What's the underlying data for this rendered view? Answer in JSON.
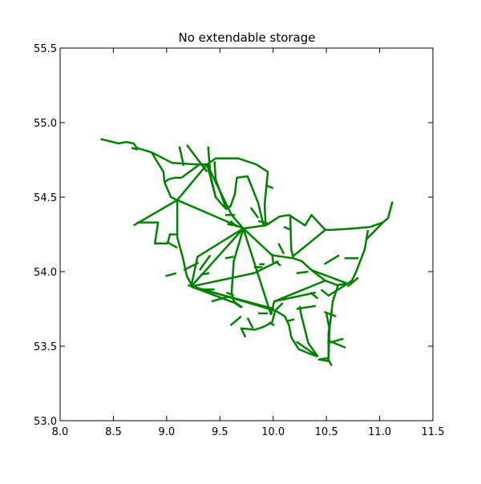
{
  "chart_data": {
    "type": "line",
    "title": "No extendable storage",
    "xlabel": "",
    "ylabel": "",
    "xlim": [
      8.0,
      11.5
    ],
    "ylim": [
      53.0,
      55.5
    ],
    "xticks": [
      "8.0",
      "8.5",
      "9.0",
      "9.5",
      "10.0",
      "10.5",
      "11.0",
      "11.5"
    ],
    "yticks": [
      "53.0",
      "53.5",
      "54.0",
      "54.5",
      "55.0",
      "55.5"
    ],
    "grid": false,
    "legend": "none",
    "line_color": "#008000",
    "series": [
      {
        "points": [
          [
            8.38,
            54.89
          ],
          [
            8.55,
            54.86
          ],
          [
            8.62,
            54.87
          ],
          [
            8.69,
            54.86
          ],
          [
            8.72,
            54.83
          ],
          [
            8.86,
            54.8
          ],
          [
            9.05,
            54.73
          ],
          [
            9.27,
            54.72
          ],
          [
            9.38,
            54.72
          ],
          [
            9.46,
            54.76
          ],
          [
            9.67,
            54.76
          ],
          [
            9.84,
            54.72
          ],
          [
            9.95,
            54.67
          ],
          [
            9.92,
            54.45
          ],
          [
            9.93,
            54.31
          ]
        ]
      },
      {
        "points": [
          [
            8.67,
            54.83
          ],
          [
            8.73,
            54.82
          ]
        ]
      },
      {
        "points": [
          [
            8.86,
            54.8
          ],
          [
            8.9,
            54.75
          ],
          [
            8.97,
            54.67
          ],
          [
            8.98,
            54.6
          ],
          [
            9.04,
            54.5
          ],
          [
            9.1,
            54.48
          ]
        ]
      },
      {
        "points": [
          [
            8.98,
            54.6
          ],
          [
            9.02,
            54.62
          ],
          [
            9.08,
            54.63
          ],
          [
            9.14,
            54.63
          ]
        ]
      },
      {
        "points": [
          [
            9.1,
            54.48
          ],
          [
            9.38,
            54.72
          ]
        ]
      },
      {
        "points": [
          [
            9.12,
            54.84
          ],
          [
            9.16,
            54.71
          ]
        ]
      },
      {
        "points": [
          [
            9.14,
            54.63
          ],
          [
            9.31,
            54.72
          ]
        ]
      },
      {
        "points": [
          [
            9.19,
            54.85
          ],
          [
            9.38,
            54.67
          ]
        ]
      },
      {
        "points": [
          [
            9.38,
            54.72
          ],
          [
            9.46,
            54.5
          ],
          [
            9.52,
            54.45
          ],
          [
            9.56,
            54.42
          ],
          [
            9.6,
            54.44
          ],
          [
            9.64,
            54.52
          ],
          [
            9.66,
            54.63
          ],
          [
            9.76,
            54.64
          ],
          [
            9.86,
            54.46
          ],
          [
            9.91,
            54.31
          ]
        ]
      },
      {
        "points": [
          [
            9.39,
            54.84
          ],
          [
            9.41,
            54.65
          ],
          [
            9.46,
            54.5
          ]
        ]
      },
      {
        "points": [
          [
            9.45,
            54.74
          ],
          [
            9.46,
            54.62
          ],
          [
            9.56,
            54.42
          ]
        ]
      },
      {
        "points": [
          [
            9.38,
            54.72
          ],
          [
            9.61,
            54.38
          ],
          [
            9.72,
            54.29
          ]
        ]
      },
      {
        "points": [
          [
            9.1,
            54.48
          ],
          [
            9.72,
            54.29
          ]
        ]
      },
      {
        "points": [
          [
            8.69,
            54.31
          ],
          [
            9.1,
            54.48
          ]
        ]
      },
      {
        "points": [
          [
            8.72,
            54.33
          ],
          [
            8.92,
            54.33
          ],
          [
            8.89,
            54.19
          ],
          [
            9.01,
            54.19
          ],
          [
            9.03,
            54.25
          ],
          [
            9.09,
            54.25
          ]
        ]
      },
      {
        "points": [
          [
            9.1,
            54.48
          ],
          [
            9.1,
            54.23
          ],
          [
            9.15,
            54.1
          ],
          [
            9.19,
            53.97
          ],
          [
            9.25,
            53.89
          ]
        ]
      },
      {
        "points": [
          [
            9.72,
            54.29
          ],
          [
            9.23,
            53.9
          ]
        ]
      },
      {
        "points": [
          [
            9.72,
            54.29
          ],
          [
            9.63,
            54.07
          ],
          [
            9.61,
            53.86
          ],
          [
            9.63,
            53.8
          ],
          [
            9.71,
            53.76
          ]
        ]
      },
      {
        "points": [
          [
            9.72,
            54.29
          ],
          [
            9.98,
            53.71
          ]
        ]
      },
      {
        "points": [
          [
            9.72,
            54.29
          ],
          [
            9.93,
            54.31
          ],
          [
            10.06,
            54.37
          ],
          [
            10.15,
            54.38
          ],
          [
            10.3,
            54.31
          ],
          [
            10.36,
            54.38
          ],
          [
            10.49,
            54.28
          ],
          [
            10.55,
            54.28
          ],
          [
            10.75,
            54.29
          ],
          [
            10.91,
            54.3
          ],
          [
            11.03,
            54.33
          ],
          [
            11.08,
            54.36
          ],
          [
            11.12,
            54.47
          ]
        ]
      },
      {
        "points": [
          [
            9.72,
            54.29
          ],
          [
            9.99,
            54.11
          ],
          [
            10.19,
            54.09
          ],
          [
            10.27,
            54.07
          ],
          [
            10.36,
            54.01
          ],
          [
            10.49,
            53.94
          ],
          [
            10.6,
            53.91
          ],
          [
            10.7,
            53.92
          ]
        ]
      },
      {
        "points": [
          [
            9.72,
            54.29
          ],
          [
            9.29,
            54.1
          ],
          [
            9.23,
            53.9
          ]
        ]
      },
      {
        "points": [
          [
            10.49,
            54.28
          ],
          [
            10.25,
            54.14
          ],
          [
            10.18,
            54.1
          ]
        ]
      },
      {
        "points": [
          [
            10.16,
            54.38
          ],
          [
            10.17,
            54.15
          ],
          [
            10.19,
            54.09
          ]
        ]
      },
      {
        "points": [
          [
            9.23,
            53.9
          ],
          [
            9.82,
            53.99
          ],
          [
            10.05,
            54.07
          ]
        ]
      },
      {
        "points": [
          [
            9.2,
            53.91
          ],
          [
            10.01,
            53.74
          ]
        ]
      },
      {
        "points": [
          [
            9.23,
            53.9
          ],
          [
            10.01,
            53.75
          ]
        ]
      },
      {
        "points": [
          [
            9.23,
            53.9
          ],
          [
            9.64,
            53.79
          ],
          [
            9.7,
            53.76
          ]
        ]
      },
      {
        "points": [
          [
            10.7,
            53.92
          ],
          [
            10.36,
            54.01
          ]
        ]
      },
      {
        "points": [
          [
            10.7,
            53.92
          ],
          [
            10.52,
            53.84
          ],
          [
            10.45,
            53.88
          ]
        ]
      },
      {
        "points": [
          [
            10.49,
            53.94
          ],
          [
            10.01,
            53.8
          ],
          [
            9.98,
            53.71
          ]
        ]
      },
      {
        "points": [
          [
            10.01,
            53.8
          ],
          [
            10.4,
            53.86
          ]
        ]
      },
      {
        "points": [
          [
            10.09,
            53.79
          ],
          [
            10.02,
            53.74
          ],
          [
            9.99,
            53.66
          ],
          [
            9.91,
            53.63
          ],
          [
            9.83,
            53.61
          ],
          [
            9.7,
            53.62
          ],
          [
            9.74,
            53.56
          ]
        ]
      },
      {
        "points": [
          [
            10.02,
            53.74
          ],
          [
            10.11,
            53.7
          ],
          [
            10.15,
            53.64
          ],
          [
            10.17,
            53.56
          ],
          [
            10.24,
            53.48
          ],
          [
            10.34,
            53.45
          ],
          [
            10.42,
            53.43
          ]
        ]
      },
      {
        "points": [
          [
            10.42,
            53.43
          ],
          [
            10.22,
            53.53
          ]
        ]
      },
      {
        "points": [
          [
            10.42,
            53.43
          ],
          [
            10.33,
            53.52
          ],
          [
            10.26,
            53.72
          ],
          [
            10.25,
            53.77
          ]
        ]
      },
      {
        "points": [
          [
            11.03,
            54.33
          ],
          [
            10.88,
            54.22
          ]
        ]
      },
      {
        "points": [
          [
            10.89,
            54.28
          ],
          [
            10.86,
            54.15
          ],
          [
            10.78,
            54.0
          ],
          [
            10.74,
            53.94
          ],
          [
            10.7,
            53.92
          ]
        ]
      },
      {
        "points": [
          [
            10.7,
            53.92
          ],
          [
            10.61,
            53.91
          ],
          [
            10.56,
            53.8
          ],
          [
            10.53,
            53.62
          ],
          [
            10.52,
            53.4
          ],
          [
            10.52,
            53.59
          ],
          [
            10.55,
            53.73
          ]
        ]
      },
      {
        "points": [
          [
            10.52,
            53.4
          ],
          [
            10.43,
            53.41
          ],
          [
            10.51,
            53.42
          ],
          [
            10.55,
            53.37
          ]
        ]
      },
      {
        "points": [
          [
            10.62,
            54.11
          ],
          [
            10.48,
            54.05
          ]
        ]
      },
      {
        "points": [
          [
            10.67,
            54.09
          ],
          [
            10.8,
            54.09
          ]
        ]
      },
      {
        "points": [
          [
            10.8,
            53.96
          ],
          [
            10.7,
            53.9
          ]
        ]
      },
      {
        "points": [
          [
            10.48,
            53.73
          ],
          [
            10.59,
            53.7
          ]
        ]
      },
      {
        "points": [
          [
            10.51,
            53.52
          ],
          [
            10.66,
            53.55
          ]
        ]
      },
      {
        "points": [
          [
            10.51,
            53.54
          ],
          [
            10.68,
            53.49
          ]
        ]
      },
      {
        "points": [
          [
            10.5,
            53.72
          ],
          [
            10.53,
            53.61
          ]
        ]
      },
      {
        "points": [
          [
            10.22,
            53.75
          ],
          [
            10.4,
            53.77
          ]
        ]
      },
      {
        "points": [
          [
            10.35,
            53.86
          ],
          [
            10.42,
            53.82
          ]
        ]
      },
      {
        "points": [
          [
            10.22,
            53.99
          ],
          [
            10.33,
            54.0
          ]
        ]
      },
      {
        "points": [
          [
            10.1,
            54.3
          ],
          [
            10.17,
            54.28
          ]
        ]
      },
      {
        "points": [
          [
            10.05,
            54.19
          ],
          [
            10.1,
            54.12
          ]
        ]
      },
      {
        "points": [
          [
            9.99,
            54.12
          ],
          [
            10.0,
            54.06
          ]
        ]
      },
      {
        "points": [
          [
            9.86,
            54.34
          ],
          [
            9.97,
            54.32
          ]
        ]
      },
      {
        "points": [
          [
            9.79,
            54.43
          ],
          [
            9.86,
            54.36
          ]
        ]
      },
      {
        "points": [
          [
            9.93,
            54.58
          ],
          [
            10.0,
            54.56
          ]
        ]
      },
      {
        "points": [
          [
            9.9,
            54.03
          ],
          [
            9.82,
            54.03
          ]
        ]
      },
      {
        "points": [
          [
            9.55,
            54.38
          ],
          [
            9.64,
            54.38
          ]
        ]
      },
      {
        "points": [
          [
            9.57,
            54.32
          ],
          [
            9.63,
            54.31
          ]
        ]
      },
      {
        "points": [
          [
            9.55,
            54.09
          ],
          [
            9.63,
            54.1
          ]
        ]
      },
      {
        "points": [
          [
            9.31,
            54.01
          ],
          [
            9.41,
            54.11
          ]
        ]
      },
      {
        "points": [
          [
            9.36,
            53.86
          ],
          [
            9.4,
            53.88
          ]
        ]
      },
      {
        "points": [
          [
            9.3,
            53.88
          ],
          [
            9.45,
            53.88
          ]
        ]
      },
      {
        "points": [
          [
            9.0,
            54.2
          ],
          [
            9.1,
            54.16
          ]
        ]
      },
      {
        "points": [
          [
            8.99,
            53.97
          ],
          [
            9.09,
            53.99
          ]
        ]
      },
      {
        "points": [
          [
            9.16,
            54.01
          ],
          [
            9.3,
            54.06
          ]
        ]
      },
      {
        "points": [
          [
            9.32,
            53.98
          ],
          [
            9.4,
            53.99
          ]
        ]
      },
      {
        "points": [
          [
            9.42,
            53.8
          ],
          [
            9.57,
            53.83
          ]
        ]
      },
      {
        "points": [
          [
            9.56,
            53.86
          ],
          [
            9.63,
            53.84
          ]
        ]
      },
      {
        "points": [
          [
            9.6,
            53.64
          ],
          [
            9.7,
            53.7
          ]
        ]
      },
      {
        "points": [
          [
            9.76,
            53.69
          ],
          [
            9.81,
            53.62
          ]
        ]
      },
      {
        "points": [
          [
            9.86,
            53.72
          ],
          [
            9.95,
            53.72
          ]
        ]
      },
      {
        "points": [
          [
            9.96,
            53.66
          ],
          [
            10.01,
            53.64
          ]
        ]
      },
      {
        "points": [
          [
            9.6,
            54.34
          ],
          [
            9.66,
            54.3
          ]
        ]
      },
      {
        "points": [
          [
            9.87,
            54.05
          ],
          [
            9.92,
            54.05
          ]
        ]
      },
      {
        "points": [
          [
            10.02,
            54.07
          ],
          [
            10.07,
            54.04
          ]
        ]
      },
      {
        "points": [
          [
            10.14,
            53.67
          ],
          [
            10.2,
            53.68
          ]
        ]
      }
    ]
  }
}
